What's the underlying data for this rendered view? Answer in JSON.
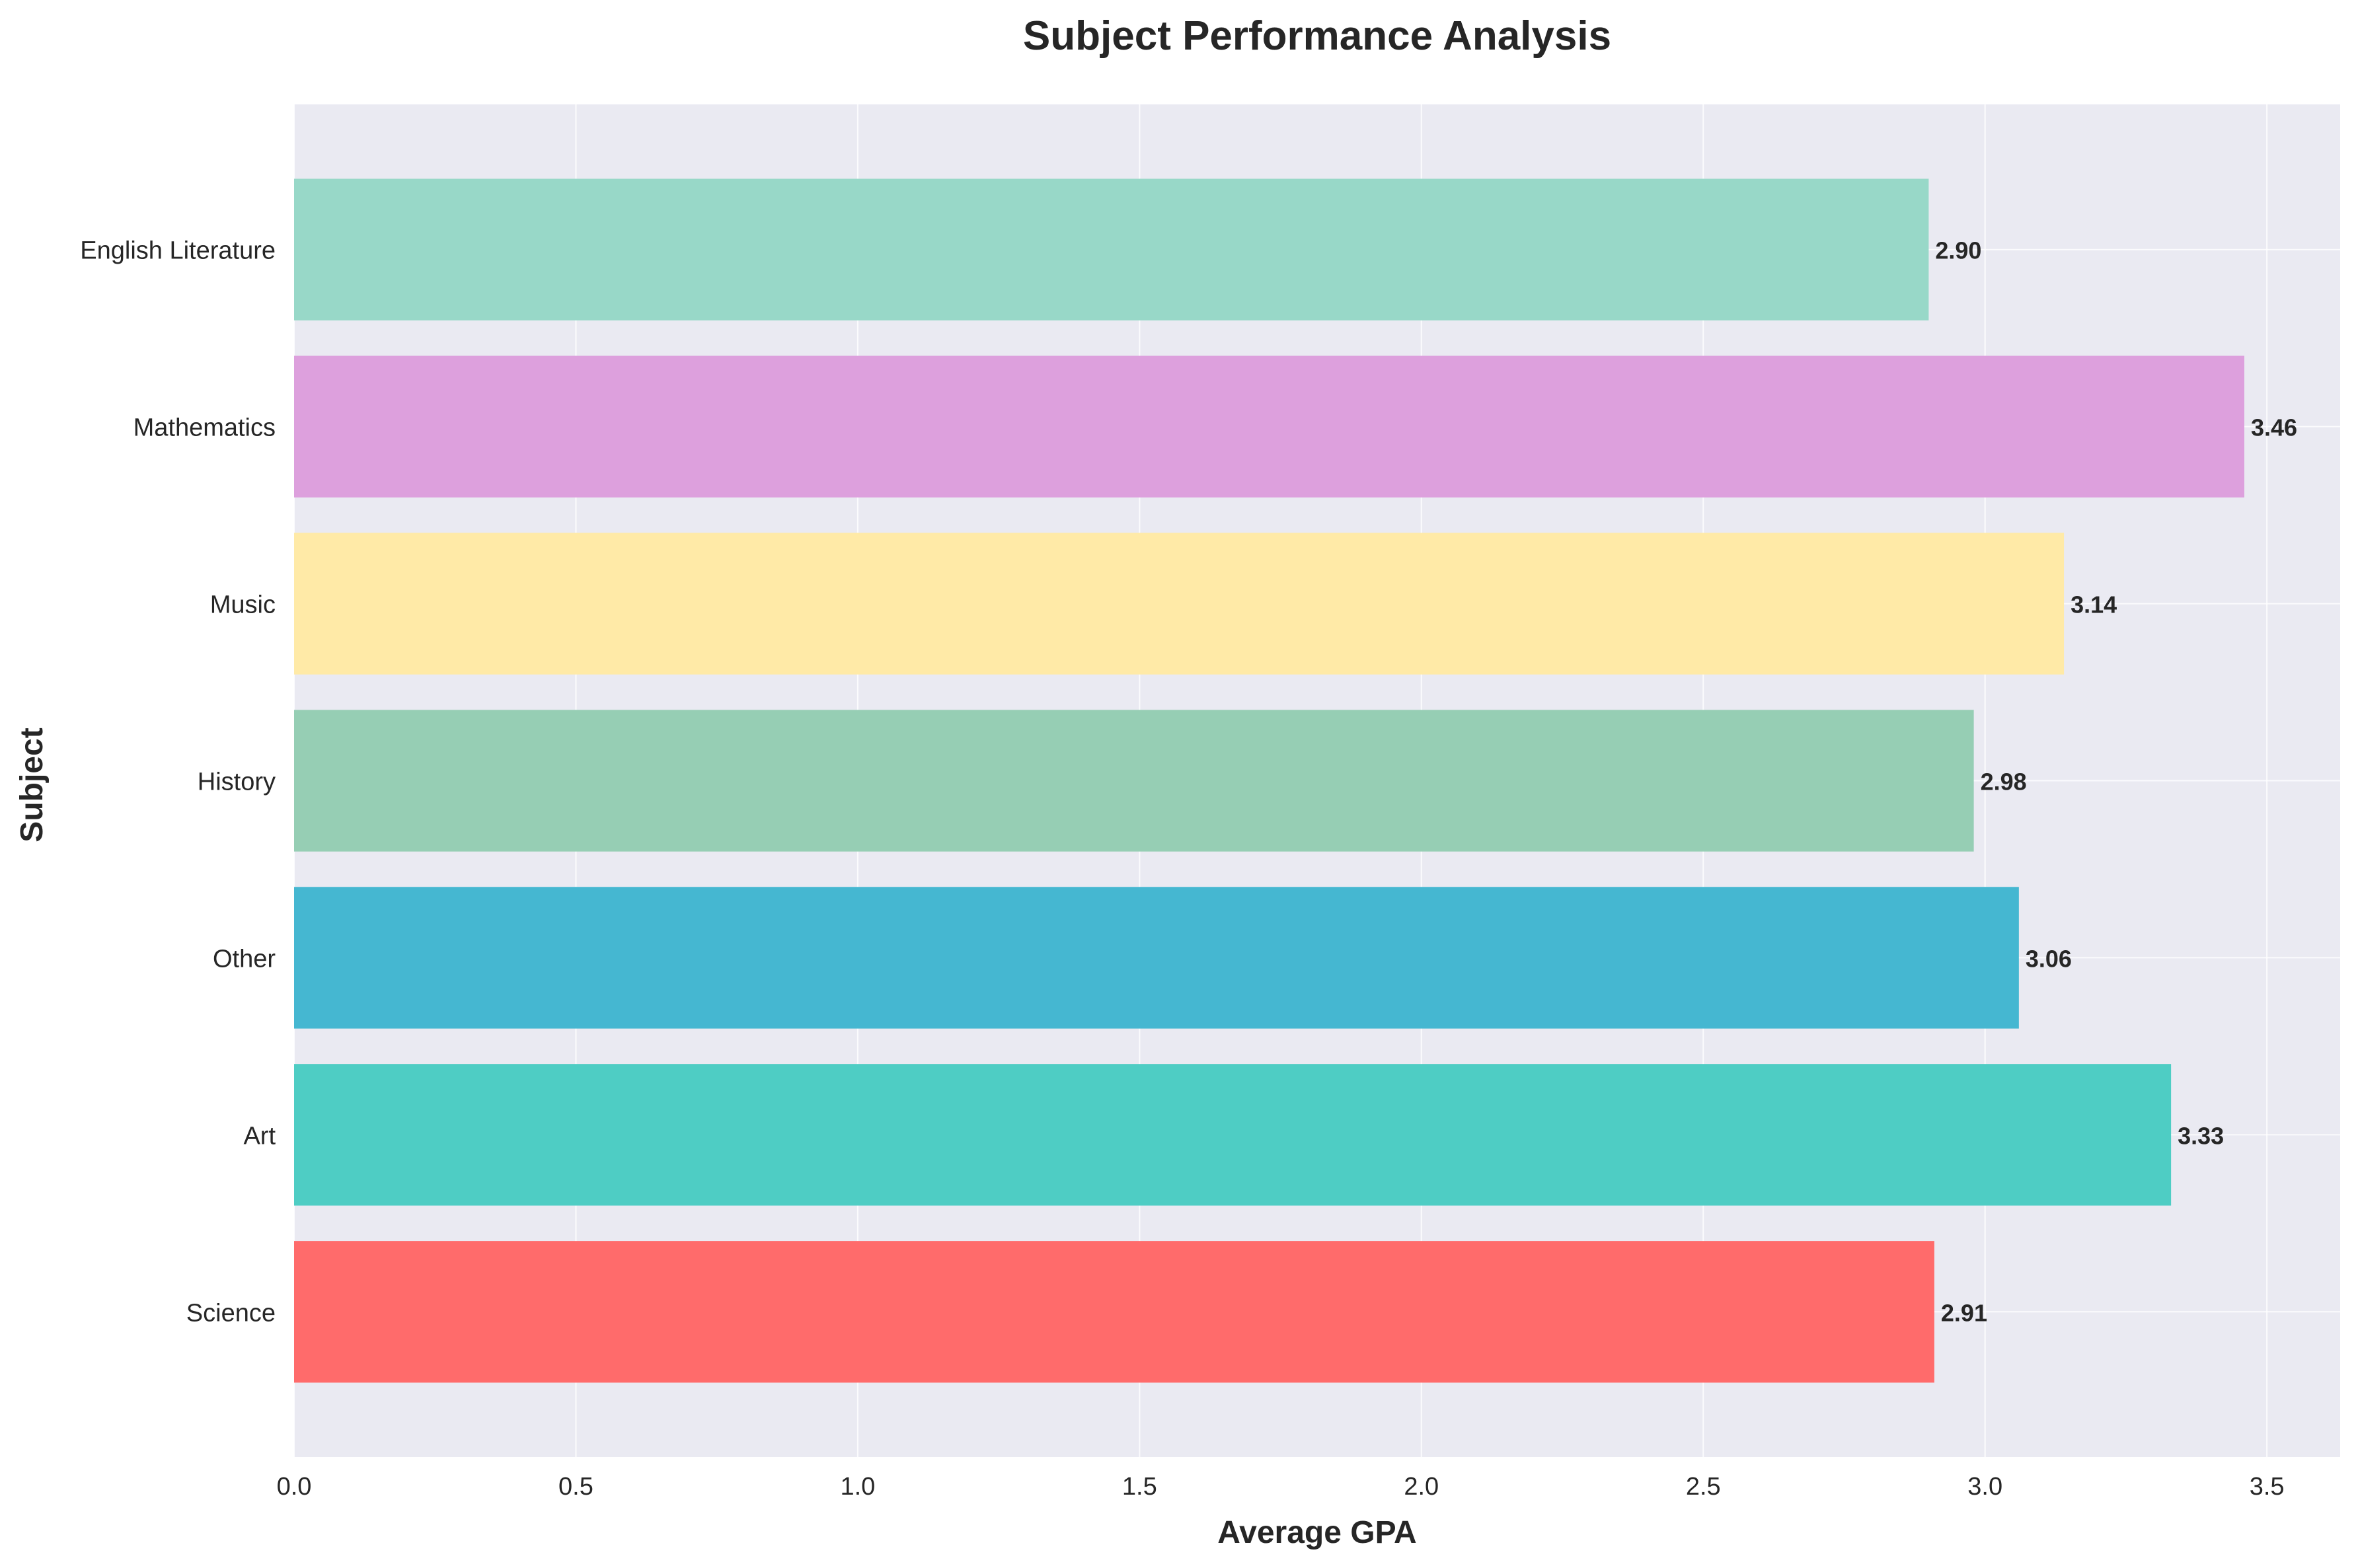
{
  "chart_data": {
    "type": "bar",
    "orientation": "horizontal",
    "title": "Subject Performance Analysis",
    "xlabel": "Average GPA",
    "ylabel": "Subject",
    "xlim": [
      0,
      3.63
    ],
    "xticks": [
      0.0,
      0.5,
      1.0,
      1.5,
      2.0,
      2.5,
      3.0,
      3.5
    ],
    "xtick_labels": [
      "0.0",
      "0.5",
      "1.0",
      "1.5",
      "2.0",
      "2.5",
      "3.0",
      "3.5"
    ],
    "grid": true,
    "categories": [
      "Science",
      "Art",
      "Other",
      "History",
      "Music",
      "Mathematics",
      "English Literature"
    ],
    "values": [
      2.91,
      3.33,
      3.06,
      2.98,
      3.14,
      3.46,
      2.9
    ],
    "value_labels": [
      "2.91",
      "3.33",
      "3.06",
      "2.98",
      "3.14",
      "3.46",
      "2.90"
    ],
    "colors": [
      "#FF6B6B",
      "#4ECDC4",
      "#45B7D1",
      "#96CEB4",
      "#FFEAA7",
      "#DDA0DD",
      "#98D8C8"
    ],
    "background_color": "#EAEAF2",
    "grid_color": "#FFFFFF"
  }
}
